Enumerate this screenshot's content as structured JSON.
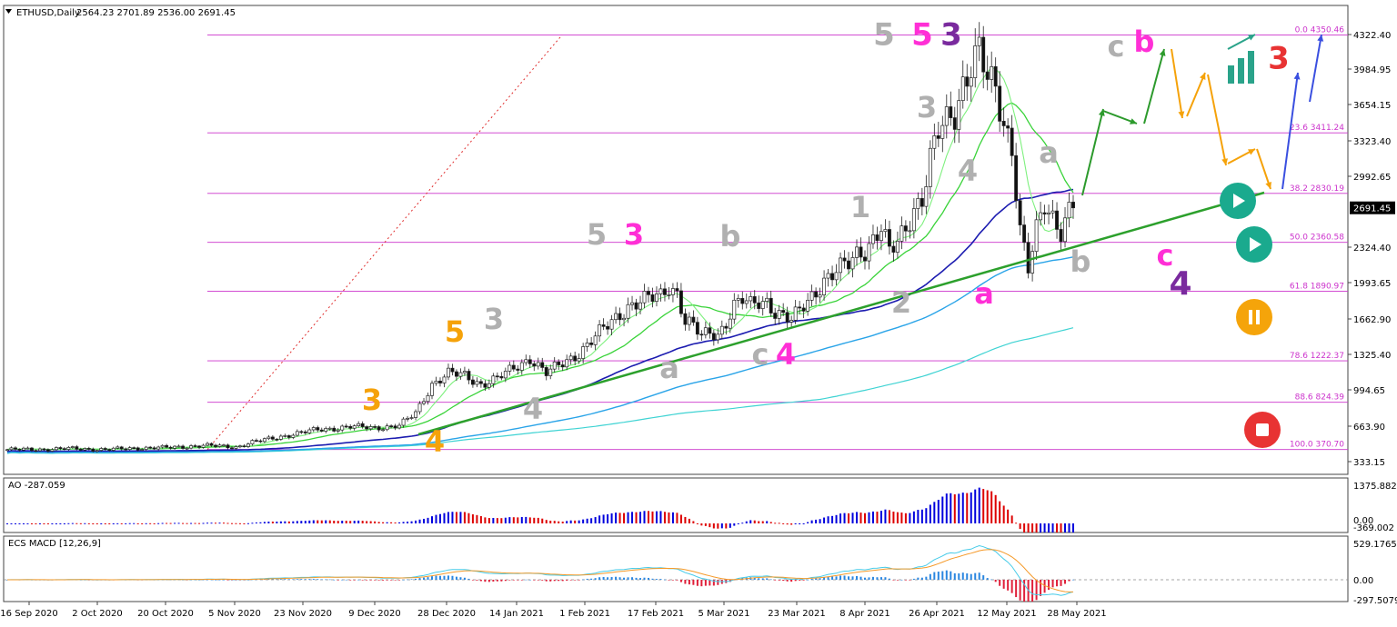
{
  "colors": {
    "up": "#1e7d32",
    "down": "#111111",
    "ao_up": "#0000dd",
    "ao_down": "#dd0000",
    "fib": "#cc33cc",
    "trendline": "#2ca02c",
    "sma_dark": "#1c1cb0",
    "sma_mid": "#2aa4e8",
    "sma_light": "#3fd3d3",
    "ema_green": "#39d339",
    "pink": "#ff2fd6",
    "purple": "#7a2a9e",
    "orange": "#f5a20a",
    "gray_label": "#b0b0b0",
    "macd_line": "#46cbe8",
    "signal_line": "#f59a2a",
    "play": "#1aaa8e",
    "pause": "#f5a40a",
    "stop": "#e83333"
  },
  "header": {
    "symbol_label": "ETHUSD,Daily",
    "ohlc": "2564.23 2701.89 2536.00 2691.45"
  },
  "price_badge": "2691.45",
  "chart_data": [
    {
      "type": "candlestick",
      "symbol": "ETHUSD",
      "timeframe": "Daily",
      "x_ticks": [
        "16 Sep 2020",
        "2 Oct 2020",
        "20 Oct 2020",
        "5 Nov 2020",
        "23 Nov 2020",
        "9 Dec 2020",
        "28 Dec 2020",
        "14 Jan 2021",
        "1 Feb 2021",
        "17 Feb 2021",
        "5 Mar 2021",
        "23 Mar 2021",
        "8 Apr 2021",
        "26 Apr 2021",
        "12 May 2021",
        "28 May 2021"
      ],
      "y_ticks": [
        "4322.40",
        "3984.95",
        "3654.15",
        "3323.40",
        "2992.65",
        "2324.40",
        "1993.65",
        "1662.90",
        "1325.40",
        "994.65",
        "663.90",
        "333.15"
      ],
      "ylim": [
        150,
        4530
      ],
      "close_path": [
        [
          0,
          370
        ],
        [
          8,
          372
        ],
        [
          16,
          380
        ],
        [
          24,
          370
        ],
        [
          32,
          385
        ],
        [
          40,
          390
        ],
        [
          48,
          410
        ],
        [
          56,
          395
        ],
        [
          60,
          440
        ],
        [
          64,
          470
        ],
        [
          70,
          520
        ],
        [
          76,
          560
        ],
        [
          84,
          590
        ],
        [
          90,
          580
        ],
        [
          96,
          600
        ],
        [
          100,
          720
        ],
        [
          104,
          1000
        ],
        [
          108,
          1100
        ],
        [
          112,
          1080
        ],
        [
          116,
          1000
        ],
        [
          120,
          1050
        ],
        [
          124,
          1150
        ],
        [
          128,
          1250
        ],
        [
          132,
          1100
        ],
        [
          136,
          1200
        ],
        [
          140,
          1300
        ],
        [
          144,
          1450
        ],
        [
          148,
          1600
        ],
        [
          152,
          1750
        ],
        [
          156,
          1800
        ],
        [
          160,
          1850
        ],
        [
          162,
          1950
        ],
        [
          164,
          1880
        ],
        [
          166,
          1600
        ],
        [
          168,
          1550
        ],
        [
          170,
          1450
        ],
        [
          172,
          1500
        ],
        [
          174,
          1480
        ],
        [
          176,
          1600
        ],
        [
          178,
          1750
        ],
        [
          180,
          1800
        ],
        [
          182,
          1750
        ],
        [
          184,
          1790
        ],
        [
          186,
          1800
        ],
        [
          188,
          1700
        ],
        [
          190,
          1650
        ],
        [
          192,
          1600
        ],
        [
          194,
          1700
        ],
        [
          196,
          1800
        ],
        [
          198,
          1900
        ],
        [
          200,
          2000
        ],
        [
          202,
          2050
        ],
        [
          204,
          2100
        ],
        [
          206,
          2150
        ],
        [
          208,
          2250
        ],
        [
          210,
          2300
        ],
        [
          212,
          2400
        ],
        [
          214,
          2500
        ],
        [
          216,
          2250
        ],
        [
          218,
          2350
        ],
        [
          220,
          2500
        ],
        [
          222,
          2700
        ],
        [
          224,
          2800
        ],
        [
          226,
          3150
        ],
        [
          228,
          3400
        ],
        [
          230,
          3500
        ],
        [
          232,
          3600
        ],
        [
          234,
          3900
        ],
        [
          236,
          4100
        ],
        [
          238,
          4200
        ],
        [
          240,
          3900
        ],
        [
          242,
          3800
        ],
        [
          244,
          3500
        ],
        [
          246,
          3300
        ],
        [
          248,
          2500
        ],
        [
          250,
          2100
        ],
        [
          252,
          2450
        ],
        [
          254,
          2700
        ],
        [
          256,
          2600
        ],
        [
          258,
          2500
        ],
        [
          260,
          2691.45
        ]
      ],
      "fibonacci": [
        {
          "level": "0.0",
          "value": 4350.46,
          "label": "0.0 4350.46"
        },
        {
          "level": "23.6",
          "value": 3411.24,
          "label": "23.6 3411.24"
        },
        {
          "level": "38.2",
          "value": 2830.19,
          "label": "38.2 2830.19"
        },
        {
          "level": "50.0",
          "value": 2360.58,
          "label": "50.0 2360.58"
        },
        {
          "level": "61.8",
          "value": 1890.97,
          "label": "61.8 1890.97"
        },
        {
          "level": "78.6",
          "value": 1222.37,
          "label": "78.6 1222.37"
        },
        {
          "level": "88.6",
          "value": 824.39,
          "label": "88.6 824.39"
        },
        {
          "level": "100.0",
          "value": 370.7,
          "label": "100.0 370.70"
        }
      ],
      "wave_labels": [
        {
          "text": "5",
          "color": "gray"
        },
        {
          "text": "5",
          "color": "pink"
        },
        {
          "text": "3",
          "color": "purple"
        },
        {
          "text": "3",
          "color": "gray"
        },
        {
          "text": "4",
          "color": "gray"
        },
        {
          "text": "1",
          "color": "gray"
        },
        {
          "text": "2",
          "color": "gray"
        },
        {
          "text": "a",
          "color": "pink"
        },
        {
          "text": "a",
          "color": "gray"
        },
        {
          "text": "b",
          "color": "gray"
        },
        {
          "text": "5",
          "color": "gray"
        },
        {
          "text": "3",
          "color": "pink"
        },
        {
          "text": "b",
          "color": "gray"
        },
        {
          "text": "3",
          "color": "gray"
        },
        {
          "text": "5",
          "color": "orange"
        },
        {
          "text": "3",
          "color": "orange"
        },
        {
          "text": "4",
          "color": "orange"
        },
        {
          "text": "4",
          "color": "gray"
        },
        {
          "text": "a",
          "color": "gray"
        },
        {
          "text": "c",
          "color": "gray"
        },
        {
          "text": "4",
          "color": "pink"
        },
        {
          "text": "c",
          "color": "gray"
        },
        {
          "text": "b",
          "color": "pink"
        },
        {
          "text": "3",
          "color": "red"
        },
        {
          "text": "c",
          "color": "pink"
        },
        {
          "text": "4",
          "color": "purple"
        }
      ]
    },
    {
      "type": "bar",
      "name": "AO -287.059",
      "y_ticks": [
        "1375.882",
        "0.00",
        "-369.002"
      ]
    },
    {
      "type": "bar",
      "name": "ECS MACD [12,26,9]",
      "y_ticks": [
        "529.1765",
        "0.00",
        "-297.5079"
      ]
    }
  ],
  "indicators": {
    "ao_label": "AO -287.059",
    "macd_label": "ECS MACD [12,26,9]"
  }
}
